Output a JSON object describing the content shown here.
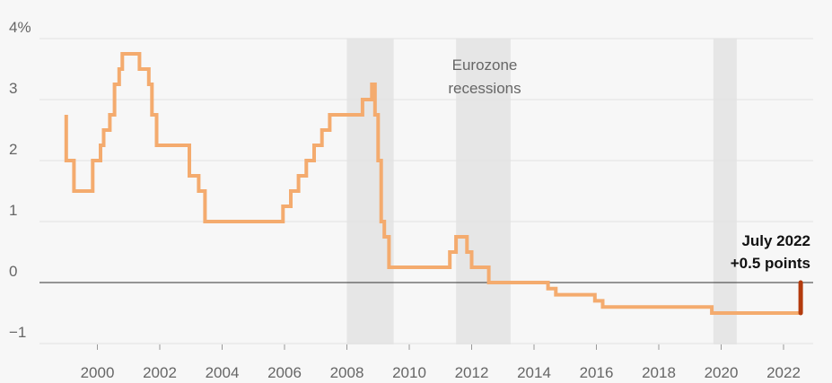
{
  "chart_data": {
    "type": "line",
    "title": "",
    "xlabel": "",
    "ylabel": "",
    "xlim": [
      1998.3,
      2023.0
    ],
    "ylim": [
      -0.85,
      4.2
    ],
    "y_ticks": [
      {
        "value": 4,
        "label": "4%"
      },
      {
        "value": 3,
        "label": "3"
      },
      {
        "value": 2,
        "label": "2"
      },
      {
        "value": 1,
        "label": "1"
      },
      {
        "value": 0,
        "label": "0"
      },
      {
        "value": -1,
        "label": "−1"
      }
    ],
    "x_ticks": [
      {
        "value": 2000,
        "label": "2000"
      },
      {
        "value": 2002,
        "label": "2002"
      },
      {
        "value": 2004,
        "label": "2004"
      },
      {
        "value": 2006,
        "label": "2006"
      },
      {
        "value": 2008,
        "label": "2008"
      },
      {
        "value": 2010,
        "label": "2010"
      },
      {
        "value": 2012,
        "label": "2012"
      },
      {
        "value": 2014,
        "label": "2014"
      },
      {
        "value": 2016,
        "label": "2016"
      },
      {
        "value": 2018,
        "label": "2018"
      },
      {
        "value": 2020,
        "label": "2020"
      },
      {
        "value": 2022,
        "label": "2022"
      }
    ],
    "grid": true,
    "recessions": [
      {
        "start": 2008.0,
        "end": 2009.5
      },
      {
        "start": 2011.5,
        "end": 2013.25
      },
      {
        "start": 2019.75,
        "end": 2020.5
      }
    ],
    "recession_label": [
      "Eurozone",
      "recessions"
    ],
    "series": [
      {
        "x": [
          1999.0,
          1999.0,
          1999.25,
          1999.25,
          1999.85,
          1999.85,
          2000.1,
          2000.1,
          2000.2,
          2000.2,
          2000.4,
          2000.4,
          2000.55,
          2000.55,
          2000.7,
          2000.7,
          2000.8,
          2000.8,
          2001.35,
          2001.35,
          2001.65,
          2001.65,
          2001.75,
          2001.75,
          2001.9,
          2001.9,
          2002.95,
          2002.95,
          2003.25,
          2003.25,
          2003.45,
          2003.45,
          2005.95,
          2005.95,
          2006.2,
          2006.2,
          2006.45,
          2006.45,
          2006.7,
          2006.7,
          2006.95,
          2006.95,
          2007.2,
          2007.2,
          2007.45,
          2007.45,
          2008.5,
          2008.5,
          2008.8,
          2008.8,
          2008.9,
          2008.9,
          2009.0,
          2009.0,
          2009.1,
          2009.1,
          2009.2,
          2009.2,
          2009.35,
          2009.35,
          2011.3,
          2011.3,
          2011.5,
          2011.5,
          2011.85,
          2011.85,
          2012.0,
          2012.0,
          2012.55,
          2012.55,
          2014.45,
          2014.45,
          2014.7,
          2014.7,
          2015.95,
          2015.95,
          2016.2,
          2016.2,
          2019.7,
          2019.7,
          2022.55
        ],
        "y": [
          2.75,
          2.0,
          2.0,
          1.5,
          1.5,
          2.0,
          2.0,
          2.25,
          2.25,
          2.5,
          2.5,
          2.75,
          2.75,
          3.25,
          3.25,
          3.5,
          3.5,
          3.75,
          3.75,
          3.5,
          3.5,
          3.25,
          3.25,
          2.75,
          2.75,
          2.25,
          2.25,
          1.75,
          1.75,
          1.5,
          1.5,
          1.0,
          1.0,
          1.25,
          1.25,
          1.5,
          1.5,
          1.75,
          1.75,
          2.0,
          2.0,
          2.25,
          2.25,
          2.5,
          2.5,
          2.75,
          2.75,
          3.0,
          3.0,
          3.25,
          3.25,
          2.75,
          2.75,
          2.0,
          2.0,
          1.0,
          1.0,
          0.75,
          0.75,
          0.25,
          0.25,
          0.5,
          0.5,
          0.75,
          0.75,
          0.5,
          0.5,
          0.25,
          0.25,
          0.0,
          0.0,
          -0.1,
          -0.1,
          -0.2,
          -0.2,
          -0.3,
          -0.3,
          -0.4,
          -0.4,
          -0.5,
          -0.5
        ],
        "color": "#f4ab6e"
      },
      {
        "x": [
          2022.55,
          2022.55
        ],
        "y": [
          -0.5,
          0.0
        ],
        "color": "#b33b0d"
      }
    ],
    "callout": {
      "line1": "July 2022",
      "line2": "+0.5 points"
    },
    "colors": {
      "background": "#f7f7f7",
      "grid": "#e2e2e2",
      "zero_line": "#333333",
      "recession_band": "#e6e6e6",
      "text": "#666666"
    }
  }
}
